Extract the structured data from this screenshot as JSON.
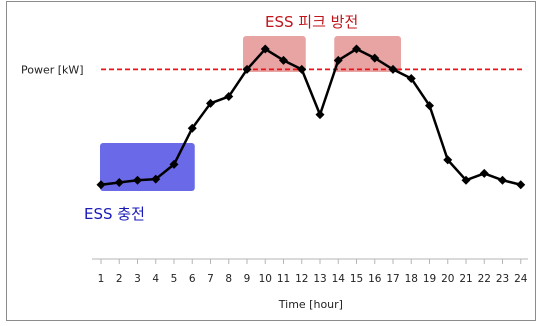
{
  "chart_data": {
    "type": "line",
    "xlabel": "Time [hour]",
    "x": [
      1,
      2,
      3,
      4,
      5,
      6,
      7,
      8,
      9,
      10,
      11,
      12,
      13,
      14,
      15,
      16,
      17,
      18,
      19,
      20,
      21,
      22,
      23,
      24
    ],
    "series": [
      {
        "values": [
          2,
          4,
          6,
          7,
          20,
          52,
          74,
          80,
          104,
          122,
          112,
          104,
          64,
          112,
          122,
          114,
          104,
          96,
          72,
          24,
          6,
          12,
          6,
          2
        ]
      }
    ],
    "ylim": [
      0,
      130
    ],
    "reference_line": {
      "label": "Power [kW]",
      "value": 104,
      "color": "#e8161b"
    },
    "annotations": {
      "charge_label": "ESS 충전",
      "peak_label": "ESS 피크 방전"
    },
    "colors": {
      "line": "#000000",
      "charge_box": "#6a6ae8",
      "peak_box": "#e8a3a3"
    }
  }
}
